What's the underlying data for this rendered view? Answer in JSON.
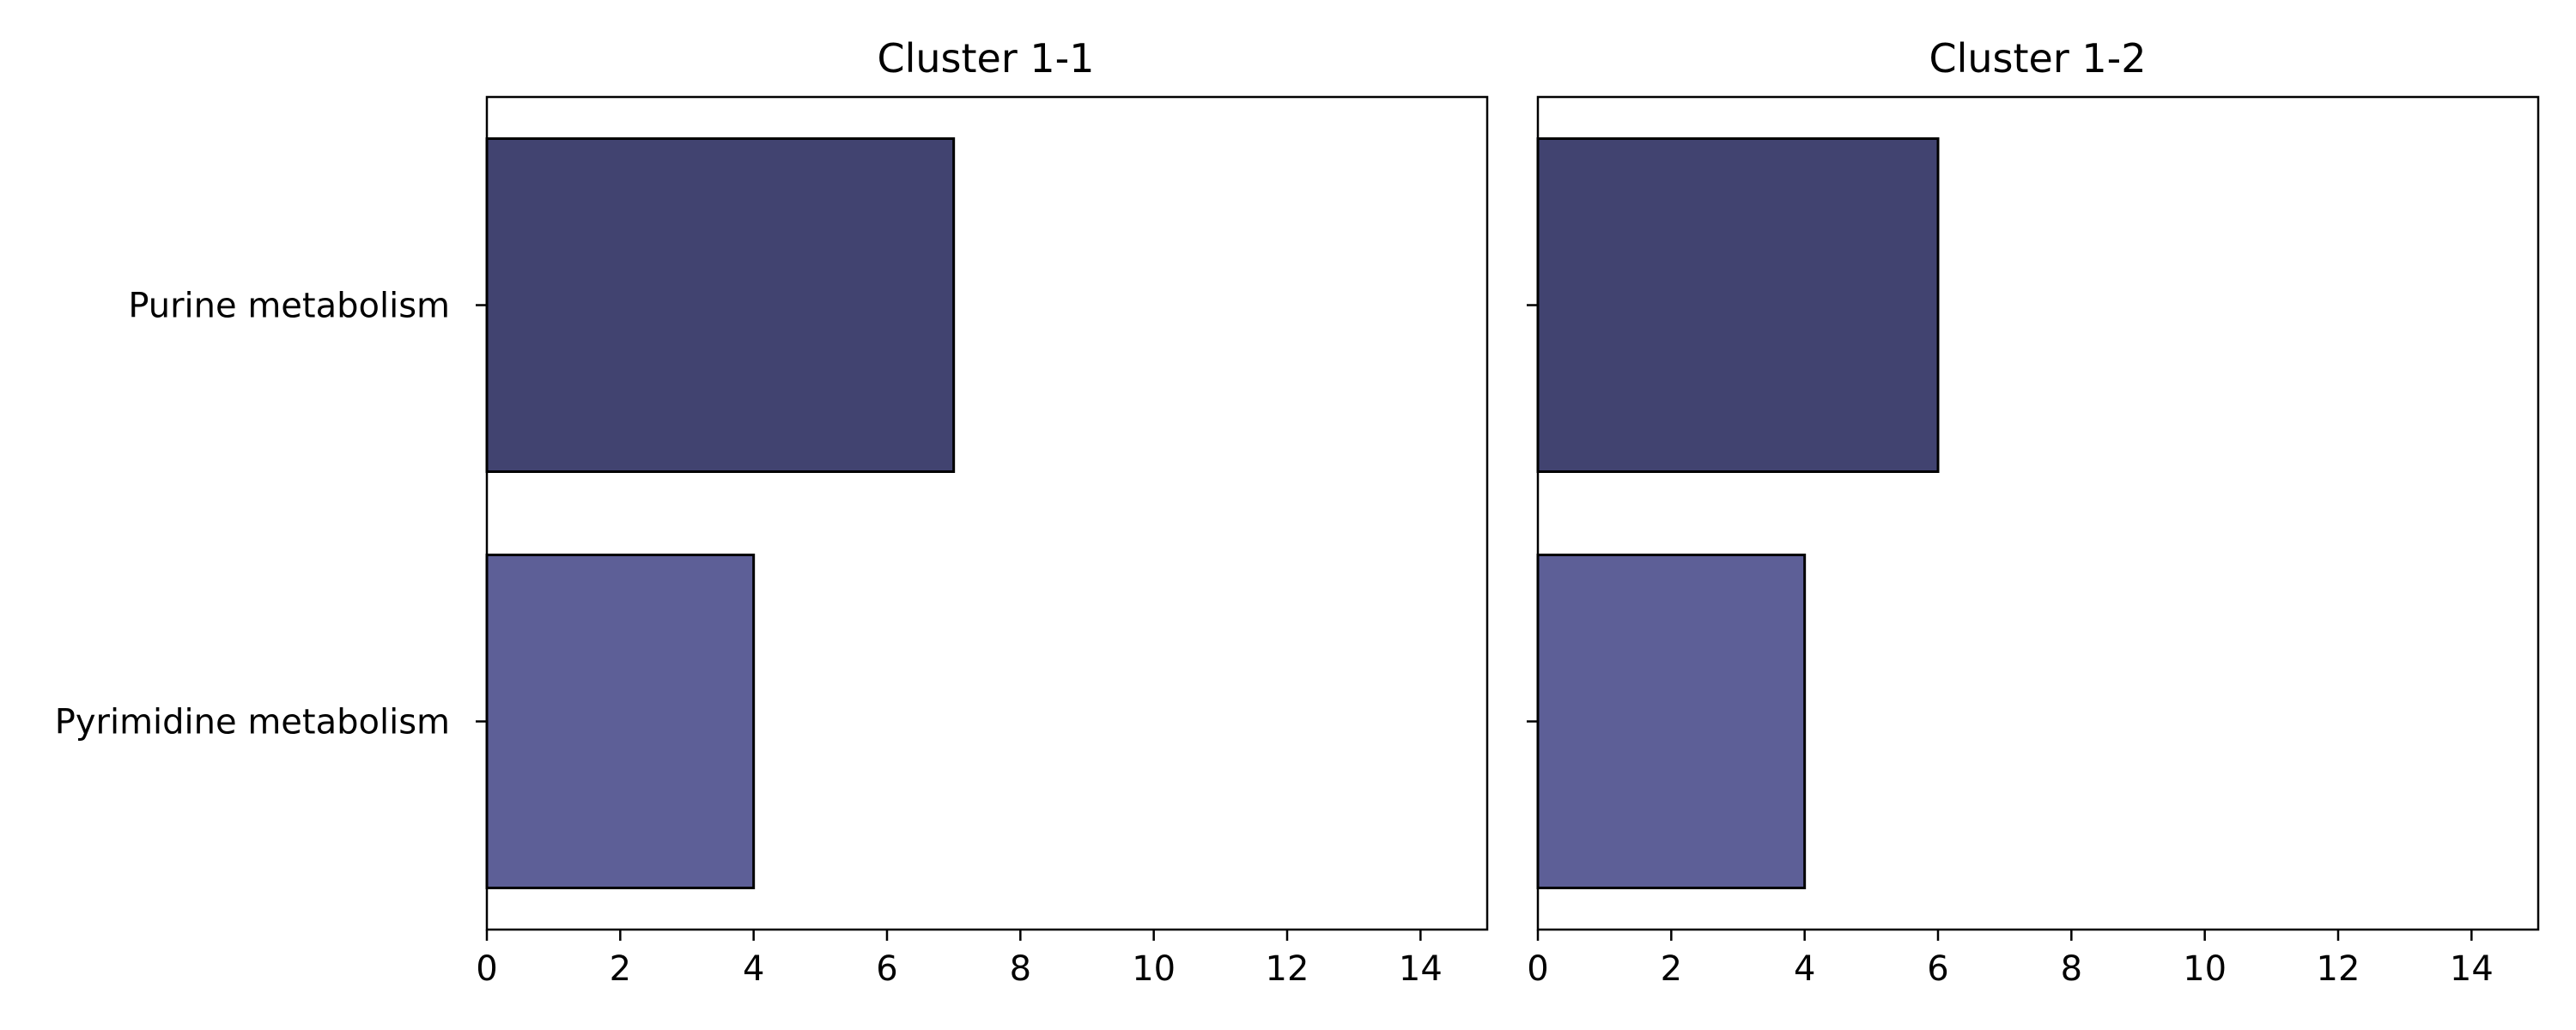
{
  "chart_data": [
    {
      "type": "bar",
      "orientation": "horizontal",
      "title": "Cluster 1-1",
      "categories": [
        "Purine metabolism",
        "Pyrimidine metabolism"
      ],
      "values": [
        7,
        4
      ],
      "colors": [
        "#414370",
        "#5d5f97"
      ],
      "xlim": [
        0,
        15
      ],
      "xticks": [
        0,
        2,
        4,
        6,
        8,
        10,
        12,
        14
      ],
      "xlabel": "",
      "ylabel": "",
      "grid": false
    },
    {
      "type": "bar",
      "orientation": "horizontal",
      "title": "Cluster 1-2",
      "categories": [
        "Purine metabolism",
        "Pyrimidine metabolism"
      ],
      "values": [
        6,
        4
      ],
      "colors": [
        "#414370",
        "#5d5f97"
      ],
      "xlim": [
        0,
        15
      ],
      "xticks": [
        0,
        2,
        4,
        6,
        8,
        10,
        12,
        14
      ],
      "xlabel": "",
      "ylabel": "",
      "grid": false
    }
  ]
}
